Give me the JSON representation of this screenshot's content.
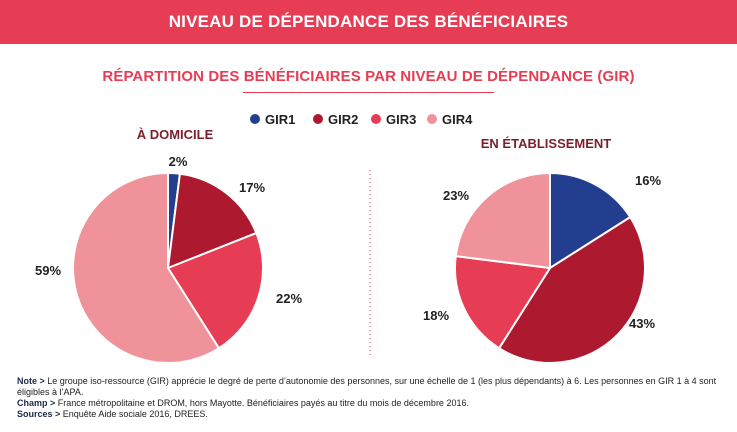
{
  "banner": {
    "title": "NIVEAU DE DÉPENDANCE DES BÉNÉFICIAIRES"
  },
  "colors": {
    "accent": "#e63d55",
    "label": "#7a1f2b",
    "GIR1": "#233e8f",
    "GIR2": "#ad1a30",
    "GIR3": "#e63d55",
    "GIR4": "#f0929a"
  },
  "chart_data": {
    "type": "pie",
    "title": "RÉPARTITION DES BÉNÉFICIAIRES PAR NIVEAU DE DÉPENDANCE (GIR)",
    "legend": [
      "GIR1",
      "GIR2",
      "GIR3",
      "GIR4"
    ],
    "legend_position": "top-center",
    "pies": [
      {
        "title": "À DOMICILE",
        "slices": [
          {
            "label": "GIR1",
            "value": 2,
            "display": "2%"
          },
          {
            "label": "GIR2",
            "value": 17,
            "display": "17%"
          },
          {
            "label": "GIR3",
            "value": 22,
            "display": "22%"
          },
          {
            "label": "GIR4",
            "value": 59,
            "display": "59%"
          }
        ]
      },
      {
        "title": "EN ÉTABLISSEMENT",
        "slices": [
          {
            "label": "GIR1",
            "value": 16,
            "display": "16%"
          },
          {
            "label": "GIR2",
            "value": 43,
            "display": "43%"
          },
          {
            "label": "GIR3",
            "value": 18,
            "display": "18%"
          },
          {
            "label": "GIR4",
            "value": 23,
            "display": "23%"
          }
        ]
      }
    ]
  },
  "notes": {
    "note_label": "Note >",
    "note_text": " Le groupe iso-ressource (GIR) apprécie le degré de perte d’autonomie des personnes, sur une échelle de 1 (les plus dépendants) à 6. Les personnes en GIR 1 à 4 sont éligibles à l’APA.",
    "champ_label": "Champ >",
    "champ_text": " France métropolitaine et DROM, hors Mayotte. Bénéficiaires payés au titre du mois de décembre 2016.",
    "sources_label": "Sources >",
    "sources_text": " Enquête Aide sociale 2016, DREES."
  }
}
